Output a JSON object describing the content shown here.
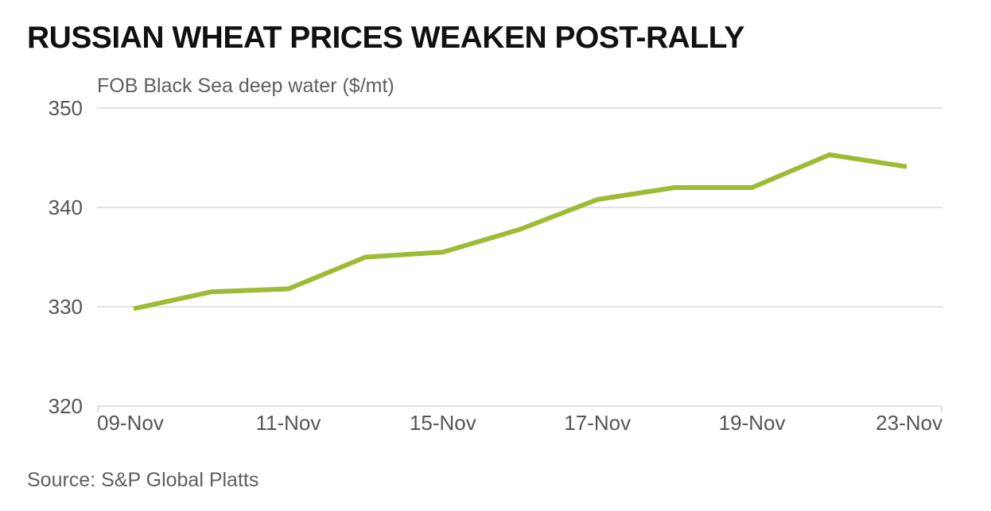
{
  "chart_data": {
    "type": "line",
    "title": "RUSSIAN WHEAT PRICES WEAKEN POST-RALLY",
    "ylabel": "FOB Black Sea deep water ($/mt)",
    "xlabel": "",
    "source": "Source: S&P Global Platts",
    "ylim": [
      320,
      350
    ],
    "yticks": [
      320,
      330,
      340,
      350
    ],
    "grid": true,
    "x_tick_labels": [
      "09-Nov",
      "11-Nov",
      "15-Nov",
      "17-Nov",
      "19-Nov",
      "23-Nov"
    ],
    "x_tick_point_index": [
      0,
      2,
      4,
      6,
      8,
      10
    ],
    "line_color": "#9dbb35",
    "grid_color": "#d9d9d9",
    "series": [
      {
        "name": "FOB Black Sea deep water",
        "values": [
          329.8,
          331.5,
          331.8,
          335.0,
          335.5,
          337.8,
          340.8,
          342.0,
          342.0,
          345.3,
          344.1
        ]
      }
    ]
  }
}
